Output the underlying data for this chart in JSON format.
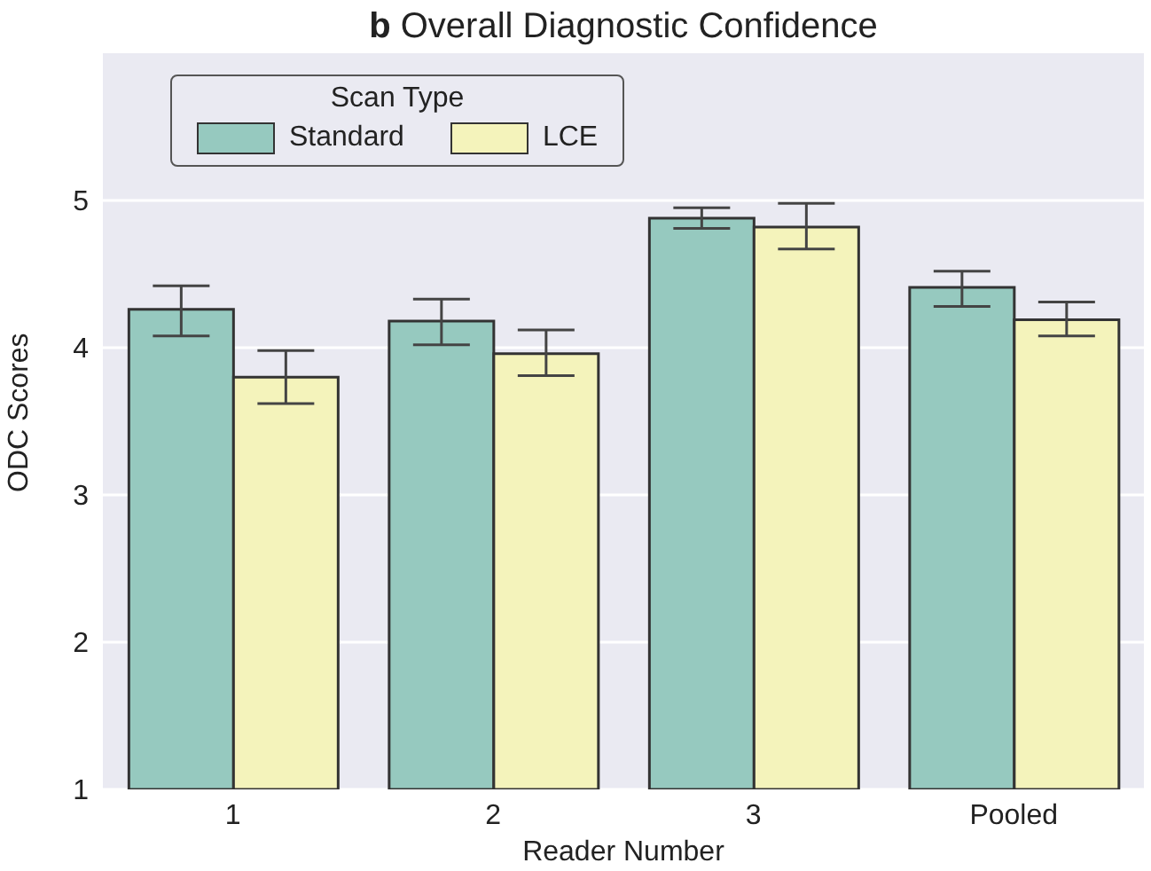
{
  "chart_data": {
    "type": "bar",
    "title": "b Overall Diagnostic Confidence",
    "xlabel": "Reader Number",
    "ylabel": "ODC Scores",
    "legend_title": "Scan Type",
    "categories": [
      "1",
      "2",
      "3",
      "Pooled"
    ],
    "series": [
      {
        "name": "Standard",
        "color": "#96c9bf",
        "values": [
          4.26,
          4.18,
          4.88,
          4.41
        ],
        "errors": [
          [
            4.08,
            4.42
          ],
          [
            4.02,
            4.33
          ],
          [
            4.81,
            4.95
          ],
          [
            4.28,
            4.52
          ]
        ]
      },
      {
        "name": "LCE",
        "color": "#f4f3bb",
        "values": [
          3.8,
          3.96,
          4.82,
          4.19
        ],
        "errors": [
          [
            3.62,
            3.98
          ],
          [
            3.81,
            4.12
          ],
          [
            4.67,
            4.98
          ],
          [
            4.08,
            4.31
          ]
        ]
      }
    ],
    "ylim": [
      1,
      6
    ],
    "yticks": [
      1,
      2,
      3,
      4,
      5
    ],
    "grid": "y",
    "legend": "top left"
  }
}
